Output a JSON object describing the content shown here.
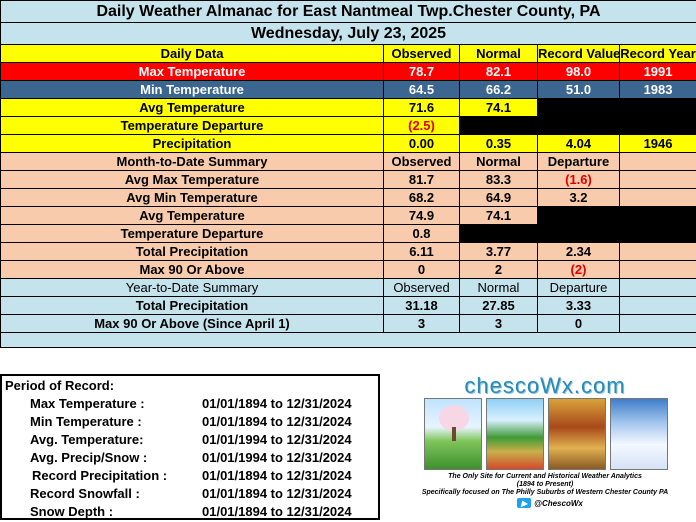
{
  "title": "Daily Weather Almanac for East Nantmeal Twp.Chester County, PA",
  "date": "Wednesday, July 23, 2025",
  "daily": {
    "headers": [
      "Daily Data",
      "Observed",
      "Normal",
      "Record Value",
      "Record Year"
    ],
    "max_temp": {
      "label": "Max Temperature",
      "observed": "78.7",
      "normal": "82.1",
      "record": "98.0",
      "year": "1991"
    },
    "min_temp": {
      "label": "Min Temperature",
      "observed": "64.5",
      "normal": "66.2",
      "record": "51.0",
      "year": "1983"
    },
    "avg_temp": {
      "label": "Avg Temperature",
      "observed": "71.6",
      "normal": "74.1"
    },
    "departure": {
      "label": "Temperature Departure",
      "observed": "(2.5)"
    },
    "precip": {
      "label": "Precipitation",
      "observed": "0.00",
      "normal": "0.35",
      "record": "4.04",
      "year": "1946"
    }
  },
  "mtd": {
    "headers": [
      "Month-to-Date Summary",
      "Observed",
      "Normal",
      "Departure"
    ],
    "avg_max": {
      "label": "Avg Max Temperature",
      "observed": "81.7",
      "normal": "83.3",
      "departure": "(1.6)"
    },
    "avg_min": {
      "label": "Avg Min Temperature",
      "observed": "68.2",
      "normal": "64.9",
      "departure": "3.2"
    },
    "avg_temp": {
      "label": "Avg Temperature",
      "observed": "74.9",
      "normal": "74.1"
    },
    "temp_dep": {
      "label": "Temperature Departure",
      "observed": "0.8"
    },
    "total_precip": {
      "label": "Total Precipitation",
      "observed": "6.11",
      "normal": "3.77",
      "departure": "2.34"
    },
    "max90": {
      "label": "Max 90 Or Above",
      "observed": "0",
      "normal": "2",
      "departure": "(2)"
    }
  },
  "ytd": {
    "headers": [
      "Year-to-Date Summary",
      "Observed",
      "Normal",
      "Departure"
    ],
    "total_precip": {
      "label": "Total Precipitation",
      "observed": "31.18",
      "normal": "27.85",
      "departure": "3.33"
    },
    "max90": {
      "label": "Max 90 Or Above (Since April 1)",
      "observed": "3",
      "normal": "3",
      "departure": "0"
    }
  },
  "period": {
    "title": "Period of Record:",
    "rows": [
      {
        "label": "Max Temperature :",
        "range": "01/01/1894 to 12/31/2024"
      },
      {
        "label": "Min Temperature :",
        "range": "01/01/1894 to 12/31/2024"
      },
      {
        "label": "Avg. Temperature:",
        "range": "01/01/1994 to 12/31/2024"
      },
      {
        "label": "Avg. Precip/Snow :",
        "range": "01/01/1994 to 12/31/2024"
      },
      {
        "label": "Record Precipitation :",
        "range": "01/01/1894 to 12/31/2024"
      },
      {
        "label": "Record Snowfall :",
        "range": "01/01/1894 to 12/31/2024"
      },
      {
        "label": "Snow Depth :",
        "range": "01/01/1894 to 12/31/2024"
      }
    ]
  },
  "logo": {
    "name": "chescoWx.com",
    "tagline": "The Only Site for Current and Historical Weather Analytics",
    "years": "(1894 to Present)",
    "focus": "Specifically focused on The Philly Suburbs of Western Chester County PA",
    "handle": "@ChescoWx",
    "icon": "twitter-bird-icon"
  },
  "colors": {
    "header_blue": "#c5e3ed",
    "yellow": "#ffff00",
    "red": "#ff0000",
    "navy": "#3a6690",
    "peach": "#f8cbad",
    "record_red": "#e00000",
    "logo_blue": "#2a8ab5"
  }
}
